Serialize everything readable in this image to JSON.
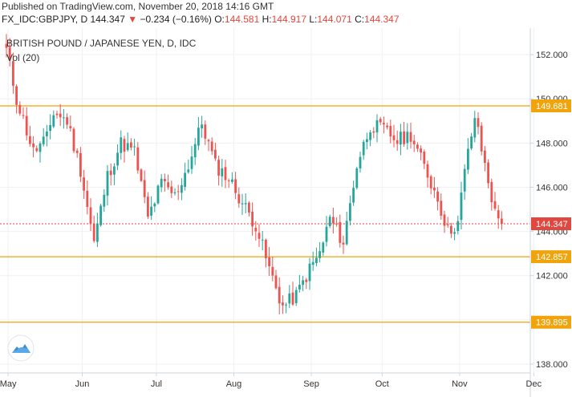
{
  "header": {
    "published": "Published on TradingView.com, November 20, 2018 14:16 GMT",
    "symbol": "FX_IDC:GBPJPY, D",
    "last": "144.347",
    "change_arrow": "▼",
    "change": "−0.234 (−0.16%)",
    "o_label": "O:",
    "o_value": "144.581",
    "h_label": "H:",
    "h_value": "144.917",
    "l_label": "L:",
    "l_value": "144.071",
    "c_label": "C:",
    "c_value": "144.347"
  },
  "chart_data": {
    "type": "candlestick",
    "title": "BRITISH POUND / JAPANESE YEN, D, IDC",
    "subtitle": "Vol (20)",
    "ylim": [
      137.6,
      153.2
    ],
    "y_ticks": [
      "152.000",
      "150.000",
      "148.000",
      "146.000",
      "144.000",
      "142.000",
      "140.000",
      "138.000"
    ],
    "y_tick_values": [
      152,
      150,
      148,
      146,
      144,
      142,
      140,
      138
    ],
    "x_ticks": [
      "May",
      "Jun",
      "Jul",
      "Aug",
      "Sep",
      "Oct",
      "Nov",
      "Dec"
    ],
    "x_tick_index": [
      0.5,
      22.5,
      44.5,
      67.5,
      90.5,
      111.5,
      134.5,
      156.5
    ],
    "levels": [
      {
        "value": 149.681,
        "label": "149.681",
        "color": "#f0a30a"
      },
      {
        "value": 142.857,
        "label": "142.857",
        "color": "#f0a30a"
      },
      {
        "value": 139.895,
        "label": "139.895",
        "color": "#f0a30a"
      }
    ],
    "last_price": {
      "value": 144.347,
      "label": "144.347",
      "color": "#e0473e"
    },
    "up_color": "#26a69a",
    "down_color": "#ef5350",
    "anchors": [
      [
        -4,
        151.8
      ],
      [
        0,
        152.2
      ],
      [
        3,
        150.0
      ],
      [
        8,
        147.6
      ],
      [
        12,
        148.2
      ],
      [
        14,
        149.4
      ],
      [
        18,
        149.0
      ],
      [
        22,
        146.8
      ],
      [
        26,
        143.5
      ],
      [
        30,
        146.5
      ],
      [
        34,
        148.0
      ],
      [
        38,
        147.6
      ],
      [
        42,
        144.6
      ],
      [
        46,
        146.2
      ],
      [
        50,
        145.6
      ],
      [
        54,
        147.0
      ],
      [
        58,
        148.9
      ],
      [
        62,
        147.0
      ],
      [
        66,
        146.4
      ],
      [
        70,
        145.3
      ],
      [
        74,
        144.3
      ],
      [
        78,
        142.3
      ],
      [
        82,
        140.6
      ],
      [
        86,
        141.1
      ],
      [
        90,
        142.3
      ],
      [
        93,
        143.0
      ],
      [
        96,
        144.6
      ],
      [
        100,
        143.5
      ],
      [
        104,
        147.0
      ],
      [
        108,
        148.8
      ],
      [
        112,
        148.6
      ],
      [
        116,
        148.1
      ],
      [
        120,
        148.4
      ],
      [
        124,
        146.9
      ],
      [
        128,
        145.5
      ],
      [
        131,
        144.0
      ],
      [
        134,
        144.4
      ],
      [
        136,
        146.7
      ],
      [
        139,
        149.2
      ],
      [
        141,
        147.7
      ],
      [
        143,
        146.3
      ],
      [
        145,
        144.8
      ],
      [
        147,
        144.35
      ]
    ],
    "candles": []
  }
}
